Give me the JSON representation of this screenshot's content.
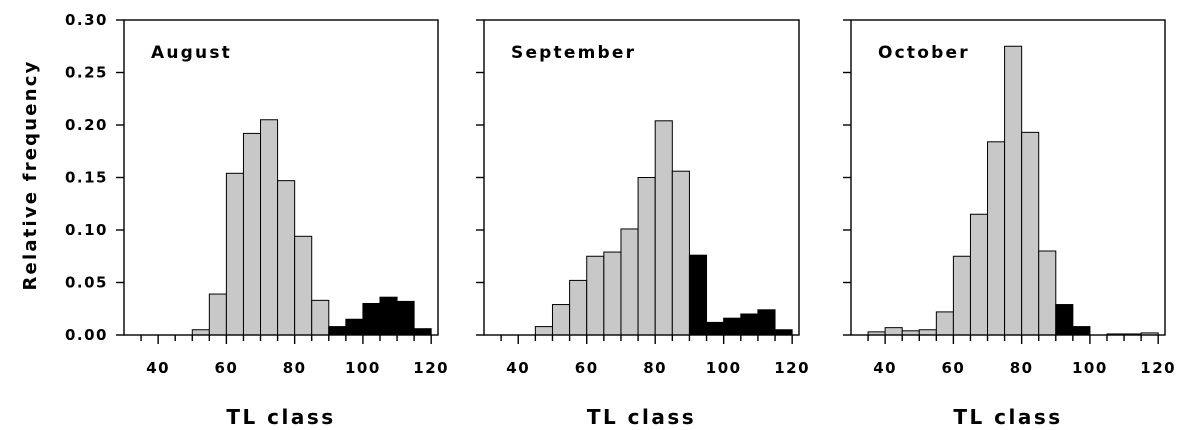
{
  "chart_data": {
    "type": "bar",
    "ylabel": "Relative frequency",
    "xlabel": "TL class",
    "ylim": [
      0,
      0.3
    ],
    "yticks": [
      "0.00",
      "0.05",
      "0.10",
      "0.15",
      "0.20",
      "0.25",
      "0.30"
    ],
    "xlim": [
      30,
      122
    ],
    "xticks": [
      "40",
      "60",
      "80",
      "100",
      "120"
    ],
    "bin_width": 5,
    "fill_colors": {
      "light": "#c8c8c8",
      "dark": "#000000"
    },
    "panels": [
      {
        "label": "August",
        "bins": [
          {
            "x": 52.5,
            "value": 0.005,
            "fill": "light"
          },
          {
            "x": 57.5,
            "value": 0.039,
            "fill": "light"
          },
          {
            "x": 62.5,
            "value": 0.154,
            "fill": "light"
          },
          {
            "x": 67.5,
            "value": 0.192,
            "fill": "light"
          },
          {
            "x": 72.5,
            "value": 0.205,
            "fill": "light"
          },
          {
            "x": 77.5,
            "value": 0.147,
            "fill": "light"
          },
          {
            "x": 82.5,
            "value": 0.094,
            "fill": "light"
          },
          {
            "x": 87.5,
            "value": 0.033,
            "fill": "light"
          },
          {
            "x": 92.5,
            "value": 0.008,
            "fill": "dark"
          },
          {
            "x": 97.5,
            "value": 0.015,
            "fill": "dark"
          },
          {
            "x": 102.5,
            "value": 0.03,
            "fill": "dark"
          },
          {
            "x": 107.5,
            "value": 0.036,
            "fill": "dark"
          },
          {
            "x": 112.5,
            "value": 0.032,
            "fill": "dark"
          },
          {
            "x": 117.5,
            "value": 0.006,
            "fill": "dark"
          }
        ]
      },
      {
        "label": "September",
        "bins": [
          {
            "x": 47.5,
            "value": 0.008,
            "fill": "light"
          },
          {
            "x": 52.5,
            "value": 0.029,
            "fill": "light"
          },
          {
            "x": 57.5,
            "value": 0.052,
            "fill": "light"
          },
          {
            "x": 62.5,
            "value": 0.075,
            "fill": "light"
          },
          {
            "x": 67.5,
            "value": 0.079,
            "fill": "light"
          },
          {
            "x": 72.5,
            "value": 0.101,
            "fill": "light"
          },
          {
            "x": 77.5,
            "value": 0.15,
            "fill": "light"
          },
          {
            "x": 82.5,
            "value": 0.204,
            "fill": "light"
          },
          {
            "x": 87.5,
            "value": 0.156,
            "fill": "light"
          },
          {
            "x": 92.5,
            "value": 0.076,
            "fill": "dark"
          },
          {
            "x": 97.5,
            "value": 0.012,
            "fill": "dark"
          },
          {
            "x": 102.5,
            "value": 0.016,
            "fill": "dark"
          },
          {
            "x": 107.5,
            "value": 0.02,
            "fill": "dark"
          },
          {
            "x": 112.5,
            "value": 0.024,
            "fill": "dark"
          },
          {
            "x": 117.5,
            "value": 0.005,
            "fill": "dark"
          }
        ]
      },
      {
        "label": "October",
        "bins": [
          {
            "x": 37.5,
            "value": 0.003,
            "fill": "light"
          },
          {
            "x": 42.5,
            "value": 0.007,
            "fill": "light"
          },
          {
            "x": 47.5,
            "value": 0.004,
            "fill": "light"
          },
          {
            "x": 52.5,
            "value": 0.005,
            "fill": "light"
          },
          {
            "x": 57.5,
            "value": 0.022,
            "fill": "light"
          },
          {
            "x": 62.5,
            "value": 0.075,
            "fill": "light"
          },
          {
            "x": 67.5,
            "value": 0.115,
            "fill": "light"
          },
          {
            "x": 72.5,
            "value": 0.184,
            "fill": "light"
          },
          {
            "x": 77.5,
            "value": 0.275,
            "fill": "light"
          },
          {
            "x": 82.5,
            "value": 0.193,
            "fill": "light"
          },
          {
            "x": 87.5,
            "value": 0.08,
            "fill": "light"
          },
          {
            "x": 92.5,
            "value": 0.029,
            "fill": "dark"
          },
          {
            "x": 97.5,
            "value": 0.008,
            "fill": "dark"
          },
          {
            "x": 102.5,
            "value": 0.0,
            "fill": "dark"
          },
          {
            "x": 107.5,
            "value": 0.001,
            "fill": "light"
          },
          {
            "x": 112.5,
            "value": 0.001,
            "fill": "light"
          },
          {
            "x": 117.5,
            "value": 0.002,
            "fill": "light"
          }
        ]
      }
    ]
  }
}
